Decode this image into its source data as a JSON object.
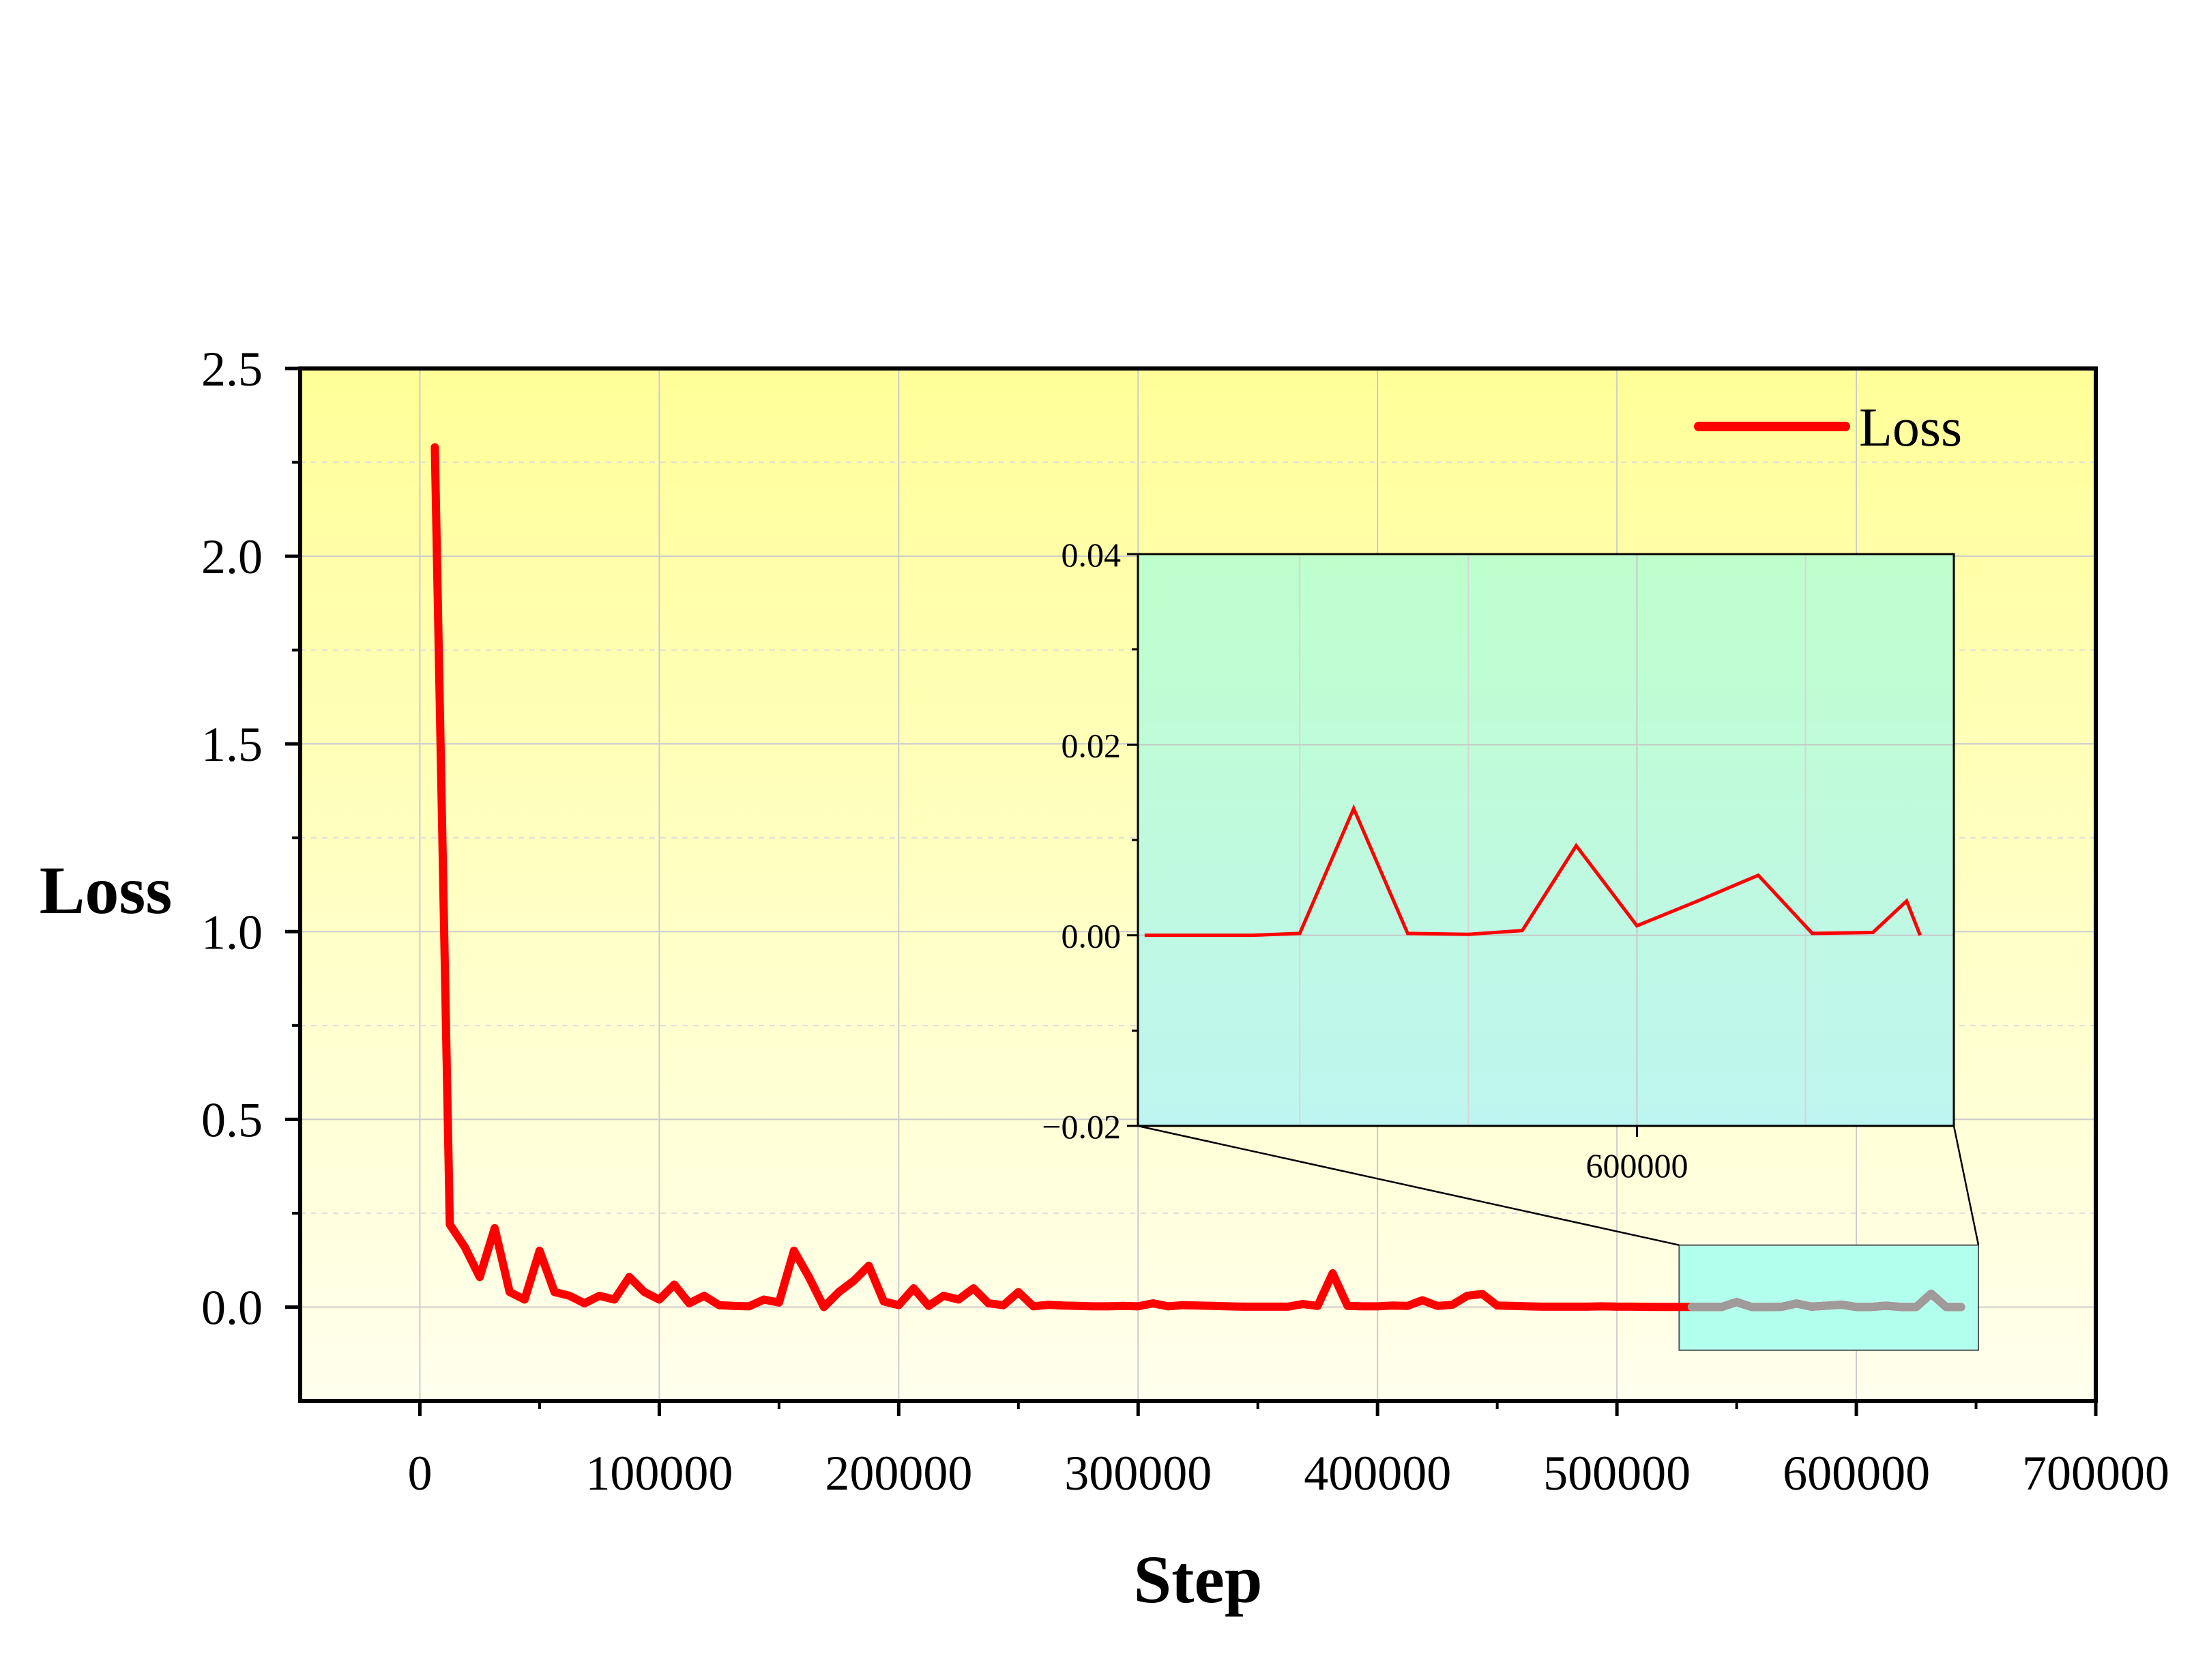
{
  "chart_data": {
    "type": "line",
    "xlabel": "Step",
    "ylabel": "Loss",
    "xlim": [
      -50000,
      700000
    ],
    "ylim": [
      -0.25,
      2.5
    ],
    "xticks": [
      0,
      100000,
      200000,
      300000,
      400000,
      500000,
      600000,
      700000
    ],
    "yticks": [
      0.0,
      0.5,
      1.0,
      1.5,
      2.0,
      2.5
    ],
    "x_tick_labels": [
      "0",
      "100000",
      "200000",
      "300000",
      "400000",
      "500000",
      "600000",
      "700000"
    ],
    "y_tick_labels": [
      "0.0",
      "0.5",
      "1.0",
      "1.5",
      "2.0",
      "2.5"
    ],
    "grid": true,
    "legend": "top-right",
    "background_gradient": [
      "#ffff99",
      "#ffffee"
    ],
    "series": [
      {
        "name": "Loss",
        "color": "#ff0000",
        "x": [
          6250,
          12500,
          18750,
          25000,
          31250,
          37500,
          43750,
          50000,
          56250,
          62500,
          68750,
          75000,
          81250,
          87500,
          93750,
          100000,
          106250,
          112500,
          118750,
          125000,
          131250,
          137500,
          143750,
          150000,
          156250,
          162500,
          168750,
          175000,
          181250,
          187500,
          193750,
          200000,
          206250,
          212500,
          218750,
          225000,
          231250,
          237500,
          243750,
          250000,
          256250,
          262500,
          268750,
          275000,
          281250,
          287500,
          293750,
          300000,
          306250,
          312500,
          318750,
          325000,
          331250,
          337500,
          343750,
          350000,
          356250,
          362500,
          368750,
          375000,
          381250,
          387500,
          393750,
          400000,
          406250,
          412500,
          418750,
          425000,
          431250,
          437500,
          443750,
          450000,
          456250,
          462500,
          468750,
          475000,
          481250,
          487500,
          493750,
          500000,
          506250,
          512500,
          518750,
          525000,
          531250,
          537500,
          543750,
          550000,
          556250,
          562500,
          568750,
          575000,
          581250,
          587500,
          593750,
          600000,
          606250,
          612500,
          618750,
          625000,
          631250,
          637500,
          643750
        ],
        "y": [
          2.29,
          0.22,
          0.16,
          0.08,
          0.21,
          0.04,
          0.02,
          0.15,
          0.04,
          0.03,
          0.01,
          0.03,
          0.02,
          0.08,
          0.04,
          0.02,
          0.06,
          0.01,
          0.03,
          0.005,
          0.003,
          0.002,
          0.02,
          0.012,
          0.15,
          0.08,
          0.0,
          0.04,
          0.07,
          0.11,
          0.015,
          0.005,
          0.05,
          0.003,
          0.03,
          0.02,
          0.05,
          0.01,
          0.005,
          0.04,
          0.002,
          0.006,
          0.004,
          0.003,
          0.002,
          0.002,
          0.003,
          0.002,
          0.01,
          0.002,
          0.005,
          0.004,
          0.003,
          0.002,
          0.001,
          0.001,
          0.001,
          0.001,
          0.008,
          0.003,
          0.09,
          0.003,
          0.002,
          0.002,
          0.004,
          0.003,
          0.018,
          0.003,
          0.006,
          0.03,
          0.035,
          0.004,
          0.003,
          0.002,
          0.001,
          0.001,
          0.001,
          0.001,
          0.002,
          0.001,
          0.001,
          0.0005,
          0.0003,
          0.0003,
          0.0003,
          0.0003,
          0.0003,
          0.0133,
          0.0002,
          0.0001,
          0.0005,
          0.0094,
          0.001,
          0.0036,
          0.0063,
          0.0002,
          0.0003,
          0.0036,
          0.0001,
          0.0001,
          0.0357,
          0.0001,
          0.0001
        ]
      }
    ],
    "inset": {
      "ylim": [
        -0.02,
        0.04
      ],
      "yticks": [
        -0.02,
        0.0,
        0.02,
        0.04
      ],
      "y_tick_labels": [
        "−0.02",
        "0.00",
        "0.02",
        "0.04"
      ],
      "xticks": [
        600000
      ],
      "x_tick_labels": [
        "600000"
      ],
      "background_gradient": [
        "#bfffcc",
        "#bff5f0"
      ],
      "zoom_region_color": "#b3ffee",
      "series_points": {
        "x": [
          527000,
          535000,
          543000,
          550000,
          558000,
          566000,
          575000,
          583000,
          591000,
          600000,
          609000,
          618000,
          626000,
          635000,
          640000,
          642000
        ],
        "y": [
          0.0,
          0.0,
          0.0,
          0.0002,
          0.0133,
          0.0002,
          0.0001,
          0.0005,
          0.0094,
          0.001,
          0.0036,
          0.0063,
          0.0002,
          0.0003,
          0.0036,
          0.0
        ]
      }
    }
  }
}
